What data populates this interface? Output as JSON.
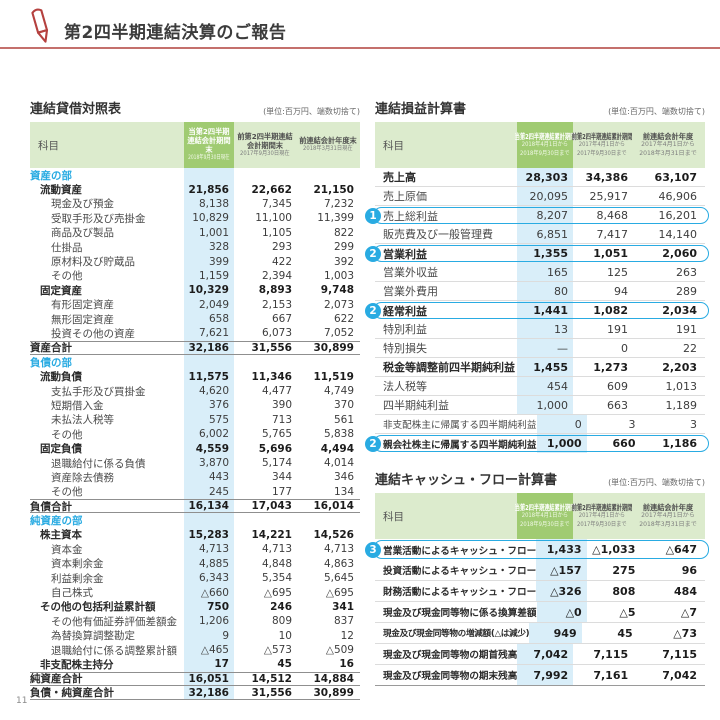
{
  "page": {
    "number": "11"
  },
  "header": {
    "title": "第2四半期連結決算のご報告"
  },
  "colors": {
    "accent_red": "#b5413f",
    "rule_red": "#c4706c",
    "accent_cyan": "#29abe2",
    "header_green_light": "#dcebcd",
    "header_green": "#a0cb72",
    "column_blue": "#d9eef9"
  },
  "balance_sheet": {
    "title": "連結貸借対照表",
    "unit_note": "(単位:百万円、端数切捨て)",
    "columns": {
      "subject": "科目",
      "c1_title": "当第2四半期連結会計期間末",
      "c1_date": "2018年9月30日現在",
      "c2_title": "前第2四半期連結会計期間末",
      "c2_date": "2017年9月30日現在",
      "c3_title": "前連結会計年度末",
      "c3_date": "2018年3月31日現在"
    },
    "rows": [
      {
        "label": "資産の部",
        "type": "section",
        "values": [
          "",
          "",
          ""
        ]
      },
      {
        "label": "流動資産",
        "type": "strong",
        "indent": 1,
        "values": [
          "21,856",
          "22,662",
          "21,150"
        ]
      },
      {
        "label": "現金及び預金",
        "type": "item",
        "indent": 2,
        "values": [
          "8,138",
          "7,345",
          "7,232"
        ]
      },
      {
        "label": "受取手形及び売掛金",
        "type": "item",
        "indent": 2,
        "values": [
          "10,829",
          "11,100",
          "11,399"
        ]
      },
      {
        "label": "商品及び製品",
        "type": "item",
        "indent": 2,
        "values": [
          "1,001",
          "1,105",
          "822"
        ]
      },
      {
        "label": "仕掛品",
        "type": "item",
        "indent": 2,
        "values": [
          "328",
          "293",
          "299"
        ]
      },
      {
        "label": "原材料及び貯蔵品",
        "type": "item",
        "indent": 2,
        "values": [
          "399",
          "422",
          "392"
        ]
      },
      {
        "label": "その他",
        "type": "item",
        "indent": 2,
        "values": [
          "1,159",
          "2,394",
          "1,003"
        ]
      },
      {
        "label": "固定資産",
        "type": "strong",
        "indent": 1,
        "values": [
          "10,329",
          "8,893",
          "9,748"
        ]
      },
      {
        "label": "有形固定資産",
        "type": "item",
        "indent": 2,
        "values": [
          "2,049",
          "2,153",
          "2,073"
        ]
      },
      {
        "label": "無形固定資産",
        "type": "item",
        "indent": 2,
        "values": [
          "658",
          "667",
          "622"
        ]
      },
      {
        "label": "投資その他の資産",
        "type": "item",
        "indent": 2,
        "values": [
          "7,621",
          "6,073",
          "7,052"
        ]
      },
      {
        "label": "資産合計",
        "type": "total",
        "values": [
          "32,186",
          "31,556",
          "30,899"
        ]
      },
      {
        "label": "負債の部",
        "type": "section",
        "values": [
          "",
          "",
          ""
        ]
      },
      {
        "label": "流動負債",
        "type": "strong",
        "indent": 1,
        "values": [
          "11,575",
          "11,346",
          "11,519"
        ]
      },
      {
        "label": "支払手形及び買掛金",
        "type": "item",
        "indent": 2,
        "values": [
          "4,620",
          "4,477",
          "4,749"
        ]
      },
      {
        "label": "短期借入金",
        "type": "item",
        "indent": 2,
        "values": [
          "376",
          "390",
          "370"
        ]
      },
      {
        "label": "未払法人税等",
        "type": "item",
        "indent": 2,
        "values": [
          "575",
          "713",
          "561"
        ]
      },
      {
        "label": "その他",
        "type": "item",
        "indent": 2,
        "values": [
          "6,002",
          "5,765",
          "5,838"
        ]
      },
      {
        "label": "固定負債",
        "type": "strong",
        "indent": 1,
        "values": [
          "4,559",
          "5,696",
          "4,494"
        ]
      },
      {
        "label": "退職給付に係る負債",
        "type": "item",
        "indent": 2,
        "values": [
          "3,870",
          "5,174",
          "4,014"
        ]
      },
      {
        "label": "資産除去債務",
        "type": "item",
        "indent": 2,
        "values": [
          "443",
          "344",
          "346"
        ]
      },
      {
        "label": "その他",
        "type": "item",
        "indent": 2,
        "values": [
          "245",
          "177",
          "134"
        ]
      },
      {
        "label": "負債合計",
        "type": "total",
        "values": [
          "16,134",
          "17,043",
          "16,014"
        ]
      },
      {
        "label": "純資産の部",
        "type": "section",
        "values": [
          "",
          "",
          ""
        ]
      },
      {
        "label": "株主資本",
        "type": "strong",
        "indent": 1,
        "values": [
          "15,283",
          "14,221",
          "14,526"
        ]
      },
      {
        "label": "資本金",
        "type": "item",
        "indent": 2,
        "values": [
          "4,713",
          "4,713",
          "4,713"
        ]
      },
      {
        "label": "資本剰余金",
        "type": "item",
        "indent": 2,
        "values": [
          "4,885",
          "4,848",
          "4,863"
        ]
      },
      {
        "label": "利益剰余金",
        "type": "item",
        "indent": 2,
        "values": [
          "6,343",
          "5,354",
          "5,645"
        ]
      },
      {
        "label": "自己株式",
        "type": "item",
        "indent": 2,
        "values": [
          "△660",
          "△695",
          "△695"
        ]
      },
      {
        "label": "その他の包括利益累計額",
        "type": "strong",
        "indent": 1,
        "values": [
          "750",
          "246",
          "341"
        ]
      },
      {
        "label": "その他有価証券評価差額金",
        "type": "item",
        "indent": 2,
        "values": [
          "1,206",
          "809",
          "837"
        ]
      },
      {
        "label": "為替換算調整勘定",
        "type": "item",
        "indent": 2,
        "values": [
          "9",
          "10",
          "12"
        ]
      },
      {
        "label": "退職給付に係る調整累計額",
        "type": "item",
        "indent": 2,
        "values": [
          "△465",
          "△573",
          "△509"
        ]
      },
      {
        "label": "非支配株主持分",
        "type": "strong",
        "indent": 1,
        "values": [
          "17",
          "45",
          "16"
        ]
      },
      {
        "label": "純資産合計",
        "type": "total",
        "values": [
          "16,051",
          "14,512",
          "14,884"
        ]
      },
      {
        "label": "負債・純資産合計",
        "type": "total",
        "values": [
          "32,186",
          "31,556",
          "30,899"
        ]
      }
    ]
  },
  "income_statement": {
    "title": "連結損益計算書",
    "unit_note": "(単位:百万円、端数切捨て)",
    "columns": {
      "subject": "科目",
      "c1_title": "当第2四半期連結累計期間",
      "c1_date1": "2018年4月1日から",
      "c1_date2": "2018年9月30日まで",
      "c2_title": "前第2四半期連結累計期間",
      "c2_date1": "2017年4月1日から",
      "c2_date2": "2017年9月30日まで",
      "c3_title": "前連結会計年度",
      "c3_date1": "2017年4月1日から",
      "c3_date2": "2018年3月31日まで"
    },
    "rows": [
      {
        "label": "売上高",
        "type": "strong",
        "values": [
          "28,303",
          "34,386",
          "63,107"
        ]
      },
      {
        "label": "売上原価",
        "type": "item",
        "values": [
          "20,095",
          "25,917",
          "46,906"
        ]
      },
      {
        "label": "売上総利益",
        "type": "callout",
        "badge": "1",
        "values": [
          "8,207",
          "8,468",
          "16,201"
        ]
      },
      {
        "label": "販売費及び一般管理費",
        "type": "item",
        "values": [
          "6,851",
          "7,417",
          "14,140"
        ]
      },
      {
        "label": "営業利益",
        "type": "callout_strong",
        "badge": "2",
        "values": [
          "1,355",
          "1,051",
          "2,060"
        ]
      },
      {
        "label": "営業外収益",
        "type": "item",
        "values": [
          "165",
          "125",
          "263"
        ]
      },
      {
        "label": "営業外費用",
        "type": "item",
        "values": [
          "80",
          "94",
          "289"
        ]
      },
      {
        "label": "経常利益",
        "type": "callout_strong",
        "badge": "2",
        "values": [
          "1,441",
          "1,082",
          "2,034"
        ]
      },
      {
        "label": "特別利益",
        "type": "item",
        "values": [
          "13",
          "191",
          "191"
        ]
      },
      {
        "label": "特別損失",
        "type": "item",
        "values": [
          "—",
          "0",
          "22"
        ]
      },
      {
        "label": "税金等調整前四半期純利益",
        "type": "strong",
        "values": [
          "1,455",
          "1,273",
          "2,203"
        ]
      },
      {
        "label": "法人税等",
        "type": "item",
        "values": [
          "454",
          "609",
          "1,013"
        ]
      },
      {
        "label": "四半期純利益",
        "type": "item",
        "values": [
          "1,000",
          "663",
          "1,189"
        ]
      },
      {
        "label": "非支配株主に帰属する四半期純利益",
        "type": "item",
        "values": [
          "0",
          "3",
          "3"
        ]
      },
      {
        "label": "親会社株主に帰属する四半期純利益",
        "type": "callout_strong",
        "badge": "2",
        "values": [
          "1,000",
          "660",
          "1,186"
        ]
      }
    ]
  },
  "cash_flow": {
    "title": "連結キャッシュ・フロー計算書",
    "unit_note": "(単位:百万円、端数切捨て)",
    "columns": {
      "subject": "科目",
      "c1_title": "当第2四半期連結累計期間",
      "c1_date1": "2018年4月1日から",
      "c1_date2": "2018年9月30日まで",
      "c2_title": "前第2四半期連結累計期間",
      "c2_date1": "2017年4月1日から",
      "c2_date2": "2017年9月30日まで",
      "c3_title": "前連結会計年度",
      "c3_date1": "2017年4月1日から",
      "c3_date2": "2018年3月31日まで"
    },
    "rows": [
      {
        "label": "営業活動によるキャッシュ・フロー",
        "type": "callout_strong",
        "badge": "3",
        "values": [
          "1,433",
          "△1,033",
          "△647"
        ]
      },
      {
        "label": "投資活動によるキャッシュ・フロー",
        "type": "strong",
        "values": [
          "△157",
          "275",
          "96"
        ]
      },
      {
        "label": "財務活動によるキャッシュ・フロー",
        "type": "strong",
        "values": [
          "△326",
          "808",
          "484"
        ]
      },
      {
        "label": "現金及び現金同等物に係る換算差額",
        "type": "strong",
        "values": [
          "△0",
          "△5",
          "△7"
        ]
      },
      {
        "label": "現金及び現金同等物の増減額(△は減少)",
        "type": "strong",
        "values": [
          "949",
          "45",
          "△73"
        ]
      },
      {
        "label": "現金及び現金同等物の期首残高",
        "type": "strong",
        "values": [
          "7,042",
          "7,115",
          "7,115"
        ]
      },
      {
        "label": "現金及び現金同等物の期末残高",
        "type": "strong",
        "values": [
          "7,992",
          "7,161",
          "7,042"
        ]
      }
    ]
  }
}
